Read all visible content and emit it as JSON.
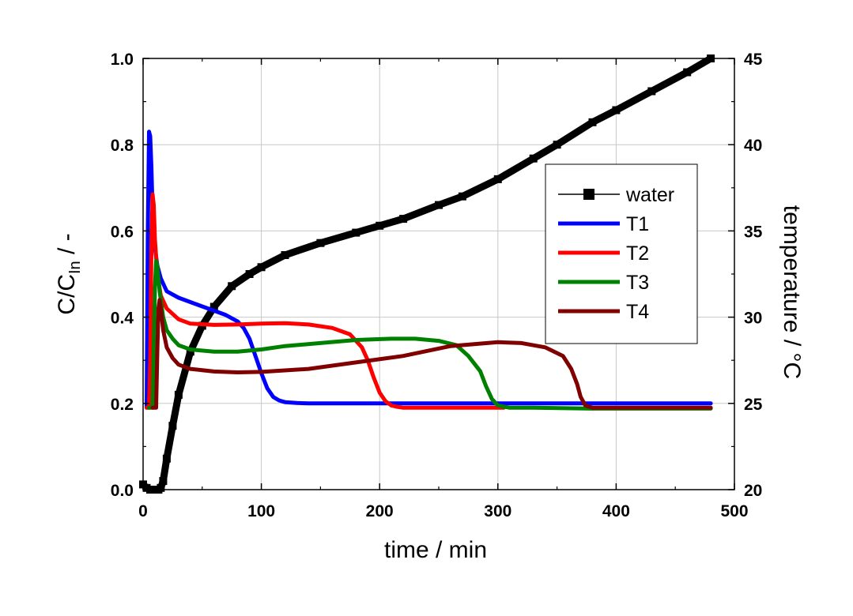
{
  "chart_data": {
    "type": "line",
    "title": "",
    "xlabel": "time / min",
    "ylabel": "C/C",
    "ylabel_sub": "In",
    "ylabel_suffix": " / -",
    "y2label": "temperature / °C",
    "xlim": [
      0,
      500
    ],
    "ylim": [
      0,
      1.0
    ],
    "y2lim": [
      20,
      45
    ],
    "xticks": [
      "0",
      "100",
      "200",
      "300",
      "400",
      "500"
    ],
    "yticks": [
      "0.0",
      "0.2",
      "0.4",
      "0.6",
      "0.8",
      "1.0"
    ],
    "y2ticks": [
      "20",
      "25",
      "30",
      "35",
      "40",
      "45"
    ],
    "grid": true,
    "legend_position": "right",
    "series": [
      {
        "name": "water",
        "axis": "right",
        "color": "#000000",
        "marker": "square",
        "x": [
          0,
          3,
          6,
          10,
          13,
          15,
          17,
          20,
          25,
          30,
          40,
          50,
          60,
          75,
          90,
          100,
          120,
          150,
          180,
          200,
          220,
          250,
          270,
          300,
          330,
          350,
          380,
          400,
          430,
          460,
          480
        ],
        "y": [
          20.3,
          20.1,
          20.0,
          20.0,
          20.0,
          20.1,
          20.5,
          21.8,
          23.7,
          25.5,
          28.0,
          29.5,
          30.6,
          31.8,
          32.5,
          32.9,
          33.6,
          34.3,
          34.9,
          35.3,
          35.7,
          36.5,
          37.0,
          38.0,
          39.2,
          40.0,
          41.3,
          42.0,
          43.1,
          44.2,
          45.0
        ]
      },
      {
        "name": "T1",
        "axis": "left",
        "color": "#0000ff",
        "x": [
          3,
          4,
          5,
          6,
          7,
          8,
          10,
          12,
          15,
          20,
          30,
          40,
          50,
          60,
          70,
          80,
          85,
          90,
          95,
          100,
          105,
          110,
          115,
          120,
          130,
          140,
          160,
          200,
          250,
          300,
          350,
          400,
          450,
          480
        ],
        "y": [
          0.19,
          0.6,
          0.83,
          0.82,
          0.75,
          0.65,
          0.56,
          0.52,
          0.49,
          0.46,
          0.445,
          0.435,
          0.425,
          0.415,
          0.405,
          0.39,
          0.375,
          0.35,
          0.31,
          0.27,
          0.235,
          0.215,
          0.207,
          0.203,
          0.201,
          0.2,
          0.2,
          0.2,
          0.2,
          0.2,
          0.2,
          0.2,
          0.2,
          0.2
        ]
      },
      {
        "name": "T2",
        "axis": "left",
        "color": "#ff0000",
        "x": [
          3,
          5,
          6,
          7,
          8,
          9,
          10,
          12,
          15,
          20,
          30,
          40,
          60,
          80,
          100,
          120,
          140,
          160,
          175,
          185,
          190,
          195,
          200,
          205,
          210,
          215,
          220,
          230,
          250,
          280,
          305
        ],
        "y": [
          0.19,
          0.19,
          0.3,
          0.55,
          0.685,
          0.66,
          0.58,
          0.5,
          0.45,
          0.42,
          0.395,
          0.385,
          0.382,
          0.383,
          0.385,
          0.386,
          0.383,
          0.375,
          0.36,
          0.33,
          0.3,
          0.26,
          0.225,
          0.205,
          0.195,
          0.192,
          0.19,
          0.19,
          0.19,
          0.19,
          0.19
        ]
      },
      {
        "name": "T3",
        "axis": "left",
        "color": "#008000",
        "x": [
          5,
          8,
          9,
          10,
          11,
          12,
          14,
          17,
          20,
          25,
          30,
          40,
          60,
          80,
          100,
          120,
          150,
          180,
          210,
          230,
          250,
          265,
          275,
          285,
          290,
          295,
          300,
          310,
          330,
          380,
          430,
          480
        ],
        "y": [
          0.19,
          0.19,
          0.33,
          0.47,
          0.53,
          0.52,
          0.46,
          0.4,
          0.37,
          0.35,
          0.335,
          0.325,
          0.32,
          0.32,
          0.325,
          0.333,
          0.34,
          0.347,
          0.35,
          0.35,
          0.345,
          0.335,
          0.31,
          0.275,
          0.24,
          0.21,
          0.195,
          0.19,
          0.19,
          0.188,
          0.188,
          0.188
        ]
      },
      {
        "name": "T4",
        "axis": "left",
        "color": "#800000",
        "x": [
          8,
          11,
          12,
          13,
          14,
          15,
          17,
          20,
          25,
          30,
          40,
          60,
          80,
          100,
          140,
          180,
          220,
          260,
          300,
          320,
          340,
          355,
          362,
          367,
          370,
          374,
          380,
          390,
          420,
          460,
          480
        ],
        "y": [
          0.19,
          0.19,
          0.32,
          0.42,
          0.44,
          0.42,
          0.37,
          0.33,
          0.305,
          0.29,
          0.28,
          0.274,
          0.272,
          0.273,
          0.28,
          0.295,
          0.31,
          0.333,
          0.342,
          0.34,
          0.33,
          0.31,
          0.28,
          0.245,
          0.215,
          0.195,
          0.19,
          0.19,
          0.19,
          0.19,
          0.19
        ]
      }
    ]
  }
}
